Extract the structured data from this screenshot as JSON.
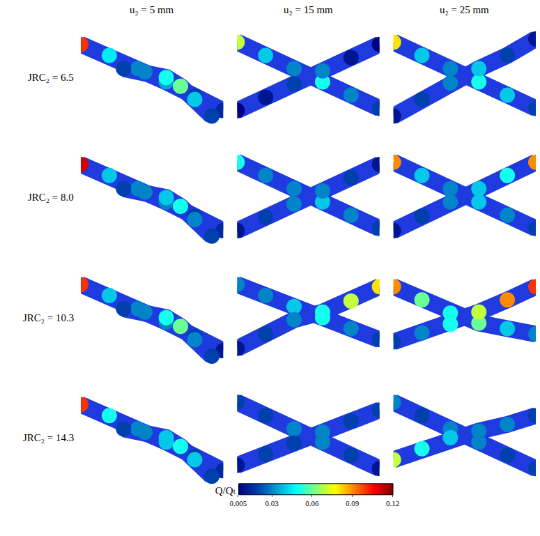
{
  "chart_data": {
    "type": "fracture_flow_map",
    "columns": [
      "u₂ = 5 mm",
      "u₂ = 15 mm",
      "u₂ = 25 mm"
    ],
    "color": "#1f3be0",
    "xlim": [
      0,
      1
    ],
    "ylim": [
      0,
      1
    ],
    "tick_labels": false,
    "colorbar": {
      "title": "Q/Qₜ",
      "range": [
        0.005,
        0.12
      ],
      "ticks": [
        0.005,
        0.03,
        0.06,
        0.09,
        0.12
      ]
    },
    "rows": [
      {
        "label": "JRC₂ = 6.5",
        "panels": [
          {
            "fractures": [
              {
                "x": [
                  0,
                  0.2,
                  0.4,
                  0.6,
                  0.8,
                  1
                ],
                "y": [
                  0.8,
                  0.7,
                  0.58,
                  0.46,
                  0.33,
                  0.2
                ],
                "values": [
                  0.1,
                  0.045,
                  0.03,
                  0.035,
                  0.02,
                  0.015
                ]
              },
              {
                "x": [
                  0.3,
                  0.45,
                  0.6,
                  0.7,
                  0.8,
                  0.92
                ],
                "y": [
                  0.58,
                  0.55,
                  0.5,
                  0.42,
                  0.3,
                  0.15
                ],
                "values": [
                  0.02,
                  0.03,
                  0.05,
                  0.06,
                  0.04,
                  0.02
                ]
              }
            ]
          },
          {
            "fractures": [
              {
                "x": [
                  0,
                  0.2,
                  0.4,
                  0.6,
                  0.8,
                  1
                ],
                "y": [
                  0.82,
                  0.7,
                  0.58,
                  0.46,
                  0.34,
                  0.22
                ],
                "values": [
                  0.07,
                  0.04,
                  0.03,
                  0.05,
                  0.03,
                  0.02
                ]
              },
              {
                "x": [
                  0,
                  0.2,
                  0.4,
                  0.6,
                  0.8,
                  1
                ],
                "y": [
                  0.2,
                  0.32,
                  0.44,
                  0.56,
                  0.68,
                  0.8
                ],
                "values": [
                  0.005,
                  0.01,
                  0.02,
                  0.03,
                  0.01,
                  0.005
                ]
              }
            ]
          },
          {
            "fractures": [
              {
                "x": [
                  0,
                  0.2,
                  0.4,
                  0.6,
                  0.8,
                  1
                ],
                "y": [
                  0.82,
                  0.7,
                  0.58,
                  0.46,
                  0.34,
                  0.22
                ],
                "values": [
                  0.08,
                  0.04,
                  0.03,
                  0.05,
                  0.04,
                  0.02
                ]
              },
              {
                "x": [
                  0,
                  0.2,
                  0.4,
                  0.6,
                  0.8,
                  1
                ],
                "y": [
                  0.15,
                  0.3,
                  0.45,
                  0.58,
                  0.7,
                  0.85
                ],
                "values": [
                  0.01,
                  0.02,
                  0.03,
                  0.04,
                  0.02,
                  0.01
                ]
              }
            ]
          }
        ]
      },
      {
        "label": "JRC₂ = 8.0",
        "panels": [
          {
            "fractures": [
              {
                "x": [
                  0,
                  0.2,
                  0.4,
                  0.6,
                  0.8,
                  1
                ],
                "y": [
                  0.8,
                  0.7,
                  0.58,
                  0.46,
                  0.33,
                  0.2
                ],
                "values": [
                  0.11,
                  0.04,
                  0.03,
                  0.03,
                  0.02,
                  0.015
                ]
              },
              {
                "x": [
                  0.3,
                  0.45,
                  0.6,
                  0.7,
                  0.8,
                  0.92
                ],
                "y": [
                  0.58,
                  0.55,
                  0.5,
                  0.42,
                  0.3,
                  0.15
                ],
                "values": [
                  0.02,
                  0.03,
                  0.04,
                  0.05,
                  0.03,
                  0.02
                ]
              }
            ]
          },
          {
            "fractures": [
              {
                "x": [
                  0,
                  0.2,
                  0.4,
                  0.6,
                  0.8,
                  1
                ],
                "y": [
                  0.82,
                  0.7,
                  0.58,
                  0.46,
                  0.34,
                  0.22
                ],
                "values": [
                  0.05,
                  0.03,
                  0.03,
                  0.04,
                  0.03,
                  0.02
                ]
              },
              {
                "x": [
                  0,
                  0.2,
                  0.4,
                  0.6,
                  0.8,
                  1
                ],
                "y": [
                  0.2,
                  0.32,
                  0.44,
                  0.56,
                  0.68,
                  0.8
                ],
                "values": [
                  0.01,
                  0.02,
                  0.03,
                  0.03,
                  0.02,
                  0.01
                ]
              }
            ]
          },
          {
            "fractures": [
              {
                "x": [
                  0,
                  0.2,
                  0.4,
                  0.6,
                  0.8,
                  1
                ],
                "y": [
                  0.82,
                  0.7,
                  0.58,
                  0.46,
                  0.34,
                  0.22
                ],
                "values": [
                  0.09,
                  0.04,
                  0.03,
                  0.04,
                  0.03,
                  0.02
                ]
              },
              {
                "x": [
                  0,
                  0.2,
                  0.4,
                  0.6,
                  0.8,
                  1
                ],
                "y": [
                  0.2,
                  0.33,
                  0.46,
                  0.58,
                  0.7,
                  0.82
                ],
                "values": [
                  0.01,
                  0.02,
                  0.03,
                  0.04,
                  0.05,
                  0.09
                ]
              }
            ]
          }
        ]
      },
      {
        "label": "JRC₂ = 10.3",
        "panels": [
          {
            "fractures": [
              {
                "x": [
                  0,
                  0.2,
                  0.4,
                  0.6,
                  0.8,
                  1
                ],
                "y": [
                  0.8,
                  0.7,
                  0.58,
                  0.46,
                  0.33,
                  0.2
                ],
                "values": [
                  0.1,
                  0.04,
                  0.03,
                  0.03,
                  0.02,
                  0.01
                ]
              },
              {
                "x": [
                  0.3,
                  0.45,
                  0.6,
                  0.7,
                  0.8,
                  0.92
                ],
                "y": [
                  0.58,
                  0.55,
                  0.5,
                  0.42,
                  0.3,
                  0.15
                ],
                "values": [
                  0.02,
                  0.03,
                  0.05,
                  0.06,
                  0.03,
                  0.02
                ]
              }
            ]
          },
          {
            "fractures": [
              {
                "x": [
                  0,
                  0.2,
                  0.4,
                  0.6,
                  0.8,
                  1
                ],
                "y": [
                  0.8,
                  0.7,
                  0.6,
                  0.5,
                  0.4,
                  0.3
                ],
                "values": [
                  0.03,
                  0.03,
                  0.04,
                  0.05,
                  0.03,
                  0.02
                ]
              },
              {
                "x": [
                  0,
                  0.2,
                  0.4,
                  0.6,
                  0.8,
                  1
                ],
                "y": [
                  0.22,
                  0.35,
                  0.48,
                  0.55,
                  0.65,
                  0.78
                ],
                "values": [
                  0.01,
                  0.02,
                  0.03,
                  0.05,
                  0.07,
                  0.08
                ]
              }
            ]
          },
          {
            "fractures": [
              {
                "x": [
                  0,
                  0.2,
                  0.4,
                  0.6,
                  0.8,
                  1
                ],
                "y": [
                  0.78,
                  0.66,
                  0.54,
                  0.45,
                  0.4,
                  0.35
                ],
                "values": [
                  0.09,
                  0.06,
                  0.05,
                  0.06,
                  0.04,
                  0.03
                ]
              },
              {
                "x": [
                  0,
                  0.2,
                  0.4,
                  0.6,
                  0.8,
                  1
                ],
                "y": [
                  0.28,
                  0.36,
                  0.44,
                  0.55,
                  0.66,
                  0.78
                ],
                "values": [
                  0.02,
                  0.03,
                  0.05,
                  0.07,
                  0.09,
                  0.1
                ]
              }
            ]
          }
        ]
      },
      {
        "label": "JRC₂ = 14.3",
        "panels": [
          {
            "fractures": [
              {
                "x": [
                  0,
                  0.2,
                  0.4,
                  0.6,
                  0.8,
                  1
                ],
                "y": [
                  0.8,
                  0.7,
                  0.58,
                  0.46,
                  0.33,
                  0.2
                ],
                "values": [
                  0.1,
                  0.05,
                  0.03,
                  0.04,
                  0.02,
                  0.015
                ]
              },
              {
                "x": [
                  0.3,
                  0.45,
                  0.6,
                  0.7,
                  0.8,
                  0.92
                ],
                "y": [
                  0.58,
                  0.55,
                  0.5,
                  0.42,
                  0.3,
                  0.15
                ],
                "values": [
                  0.02,
                  0.03,
                  0.04,
                  0.05,
                  0.04,
                  0.02
                ]
              }
            ]
          },
          {
            "fractures": [
              {
                "x": [
                  0,
                  0.2,
                  0.4,
                  0.6,
                  0.8,
                  1
                ],
                "y": [
                  0.82,
                  0.7,
                  0.58,
                  0.46,
                  0.34,
                  0.22
                ],
                "values": [
                  0.02,
                  0.02,
                  0.03,
                  0.03,
                  0.02,
                  0.01
                ]
              },
              {
                "x": [
                  0,
                  0.2,
                  0.4,
                  0.6,
                  0.8,
                  1
                ],
                "y": [
                  0.25,
                  0.35,
                  0.45,
                  0.55,
                  0.65,
                  0.75
                ],
                "values": [
                  0.01,
                  0.02,
                  0.02,
                  0.03,
                  0.02,
                  0.02
                ]
              }
            ]
          },
          {
            "fractures": [
              {
                "x": [
                  0,
                  0.2,
                  0.4,
                  0.6,
                  0.8,
                  1
                ],
                "y": [
                  0.82,
                  0.7,
                  0.58,
                  0.46,
                  0.34,
                  0.22
                ],
                "values": [
                  0.03,
                  0.02,
                  0.03,
                  0.03,
                  0.02,
                  0.02
                ]
              },
              {
                "x": [
                  0,
                  0.2,
                  0.4,
                  0.6,
                  0.8,
                  1
                ],
                "y": [
                  0.3,
                  0.4,
                  0.5,
                  0.56,
                  0.62,
                  0.7
                ],
                "values": [
                  0.07,
                  0.05,
                  0.04,
                  0.03,
                  0.03,
                  0.02
                ]
              }
            ]
          }
        ]
      }
    ]
  }
}
